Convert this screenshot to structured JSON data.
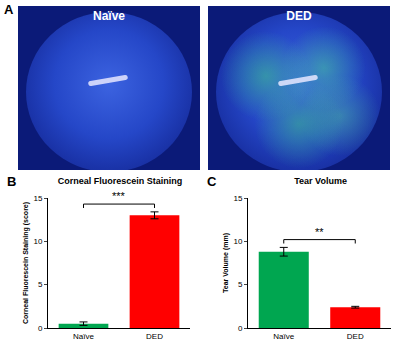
{
  "photos": {
    "panel": "A",
    "labels": [
      "Naïve",
      "DED"
    ]
  },
  "chart_data": [
    {
      "type": "bar",
      "panel": "B",
      "title": "Corneal Fluorescein Staining",
      "y_label": "Corneal Fluorescein Staining (score)",
      "categories": [
        "Naïve",
        "DED"
      ],
      "values": [
        0.5,
        13
      ],
      "errors": [
        0.2,
        0.4
      ],
      "colors": [
        "#00a650",
        "#ff0000"
      ],
      "ylim": [
        0,
        15
      ],
      "yticks": [
        0,
        5,
        10,
        15
      ],
      "grid": false,
      "annotations": [
        "***"
      ]
    },
    {
      "type": "bar",
      "panel": "C",
      "title": "Tear Volume",
      "y_label": "Tear Volume (mm)",
      "categories": [
        "Naïve",
        "DED"
      ],
      "values": [
        8.8,
        2.4
      ],
      "errors": [
        0.5,
        0.1
      ],
      "colors": [
        "#00a650",
        "#ff0000"
      ],
      "ylim": [
        0,
        15
      ],
      "yticks": [
        0,
        5,
        10,
        15
      ],
      "grid": false,
      "annotations": [
        "**"
      ]
    }
  ]
}
